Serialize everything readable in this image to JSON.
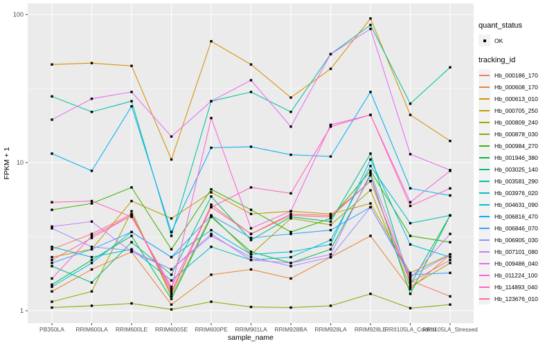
{
  "chart_data": {
    "type": "line",
    "xlabel": "sample_name",
    "ylabel": "FPKM + 1",
    "y_scale": "log10",
    "ylim": [
      0.82,
      118
    ],
    "y_ticks": [
      1,
      10,
      100
    ],
    "y_minor_ticks": [
      3.162,
      31.62
    ],
    "grid": true,
    "legend_position": "right",
    "categories": [
      "PB350LA",
      "RRIM600LA",
      "RRIM600LE",
      "RRIM600SE",
      "RRIM600PE",
      "RRIM901LA",
      "RRIM928BA",
      "RRIM928LA",
      "RRIM928LE",
      "RRII105LA_Control",
      "RRII105LA_Stressed"
    ],
    "legend": {
      "quant_status_title": "quant_status",
      "quant_status_items": [
        "OK"
      ],
      "tracking_title": "tracking_id"
    },
    "series": [
      {
        "id": "Hb_000186_170",
        "color": "#F8766D",
        "values": [
          2.6,
          3.3,
          4.5,
          1.3,
          5.2,
          3.3,
          4.5,
          4.4,
          7.5,
          1.6,
          1.25
        ]
      },
      {
        "id": "Hb_000608_170",
        "color": "#EA8331",
        "values": [
          1.35,
          1.9,
          2.5,
          1.1,
          1.75,
          1.9,
          1.65,
          2.3,
          3.2,
          1.4,
          2.4
        ]
      },
      {
        "id": "Hb_000613_010",
        "color": "#D89000",
        "values": [
          46,
          47,
          45,
          10.5,
          66,
          46,
          27.5,
          43,
          94,
          21,
          14
        ]
      },
      {
        "id": "Hb_000705_250",
        "color": "#C09B00",
        "values": [
          2.3,
          2.6,
          5.5,
          4.2,
          6.3,
          4.5,
          4.7,
          4.5,
          5.3,
          1.8,
          2.4
        ]
      },
      {
        "id": "Hb_000809_240",
        "color": "#A3A500",
        "values": [
          1.15,
          1.35,
          4.7,
          1.25,
          4.4,
          2.4,
          4.2,
          3.8,
          6.5,
          1.45,
          2.1
        ]
      },
      {
        "id": "Hb_000878_030",
        "color": "#7CAE00",
        "values": [
          1.05,
          1.08,
          1.12,
          1.02,
          1.15,
          1.06,
          1.05,
          1.08,
          1.3,
          1.04,
          1.1
        ]
      },
      {
        "id": "Hb_000984_270",
        "color": "#39B600",
        "values": [
          4.8,
          5.3,
          6.8,
          2.6,
          6.6,
          4.8,
          3.4,
          4.2,
          8.8,
          3.2,
          2.9
        ]
      },
      {
        "id": "Hb_001946_380",
        "color": "#00BB4E",
        "values": [
          1.5,
          2.2,
          3.2,
          1.2,
          4.3,
          2.5,
          2.1,
          2.6,
          8.2,
          1.3,
          4.4
        ]
      },
      {
        "id": "Hb_003025_140",
        "color": "#00BF7D",
        "values": [
          2.0,
          1.55,
          2.9,
          1.75,
          5.9,
          3.0,
          4.3,
          4.0,
          11.5,
          1.5,
          4.4
        ]
      },
      {
        "id": "Hb_003581_290",
        "color": "#00C1A3",
        "values": [
          28,
          22,
          26,
          3.2,
          26,
          30,
          22,
          54,
          85,
          25,
          44
        ]
      },
      {
        "id": "Hb_003976_020",
        "color": "#00BFC4",
        "values": [
          2.7,
          2.3,
          2.6,
          1.6,
          2.7,
          2.2,
          2.3,
          3.0,
          9.5,
          3.9,
          4.4
        ]
      },
      {
        "id": "Hb_004631_090",
        "color": "#00BAE0",
        "values": [
          1.45,
          2.1,
          3.4,
          2.3,
          3.5,
          2.4,
          2.5,
          2.8,
          10.5,
          2.8,
          2.3
        ]
      },
      {
        "id": "Hb_006816_470",
        "color": "#00B0F6",
        "values": [
          11.5,
          8.8,
          24,
          3.4,
          12.6,
          12.8,
          11.3,
          11,
          30,
          6.7,
          6.0
        ]
      },
      {
        "id": "Hb_006846_070",
        "color": "#35A2FF",
        "values": [
          2.1,
          2.6,
          3.4,
          2.3,
          4.4,
          3.1,
          3.3,
          3.5,
          5.0,
          1.75,
          1.8
        ]
      },
      {
        "id": "Hb_006905_030",
        "color": "#9590FF",
        "values": [
          3.6,
          2.7,
          2.55,
          1.9,
          3.2,
          2.3,
          2.0,
          2.3,
          5.0,
          1.7,
          2.4
        ]
      },
      {
        "id": "Hb_007101_080",
        "color": "#C77CFF",
        "values": [
          3.7,
          4.0,
          2.5,
          1.9,
          3.3,
          2.2,
          2.1,
          2.4,
          8.5,
          1.65,
          3.3
        ]
      },
      {
        "id": "Hb_009486_040",
        "color": "#E76BF3",
        "values": [
          19.5,
          27,
          30,
          15,
          26,
          36,
          17.5,
          54,
          80,
          11.4,
          8.9
        ]
      },
      {
        "id": "Hb_011224_100",
        "color": "#FA62DB",
        "values": [
          1.65,
          3.2,
          4.4,
          1.4,
          20,
          3.6,
          4.7,
          18,
          21,
          5.4,
          8.8
        ]
      },
      {
        "id": "Hb_114893_040",
        "color": "#FF62BC",
        "values": [
          5.4,
          5.5,
          4.3,
          1.45,
          5.0,
          6.8,
          6.2,
          17.5,
          21,
          5.1,
          6.7
        ]
      },
      {
        "id": "Hb_123676_010",
        "color": "#FF6A98",
        "values": [
          2.2,
          3.1,
          4.4,
          1.35,
          5.0,
          3.3,
          4.4,
          4.3,
          7.5,
          1.55,
          2.2
        ]
      }
    ]
  },
  "style": {
    "panel_bg": "#EBEBEB",
    "grid_color": "#FFFFFF",
    "tick_color": "#333333",
    "tick_label_color": "#4D4D4D",
    "point_color": "#000000",
    "legend_key_bg": "#F2F2F2"
  }
}
